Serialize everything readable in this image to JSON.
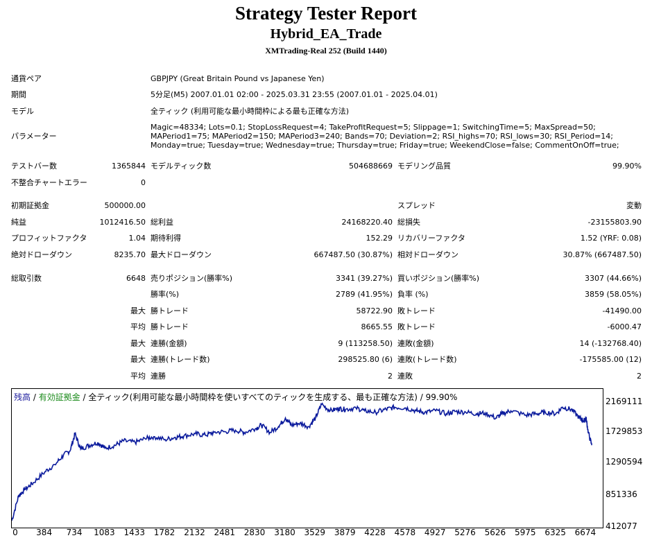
{
  "report": {
    "title": "Strategy Tester Report",
    "ea_name": "Hybrid_EA_Trade",
    "server": "XMTrading-Real 252 (Build 1440)"
  },
  "info": {
    "pair_label": "通貨ペア",
    "pair_value": "GBPJPY (Great Britain Pound vs Japanese Yen)",
    "period_label": "期間",
    "period_value": "5分足(M5) 2007.01.01 02:00 - 2025.03.31 23:55 (2007.01.01 - 2025.04.01)",
    "model_label": "モデル",
    "model_value": "全ティック (利用可能な最小時間枠による最も正確な方法)",
    "params_label": "パラメーター",
    "params_value": "Magic=48334; Lots=0.1; StopLossRequest=4; TakeProfitRequest=5; Slippage=1; SwitchingTime=5; MaxSpread=50; MAPeriod1=75; MAPeriod2=150; MAPeriod3=240; Bands=70; Deviation=2; RSI_highs=70; RSI_lows=30; RSI_Period=14; Monday=true; Tuesday=true; Wednesday=true; Thursday=true; Friday=true; WeekendClose=false; CommentOnOff=true;"
  },
  "stats": {
    "test_bars_label": "テストバー数",
    "test_bars": "1365844",
    "model_ticks_label": "モデルティック数",
    "model_ticks": "504688669",
    "model_quality_label": "モデリング品質",
    "model_quality": "99.90%",
    "mismatch_label": "不整合チャートエラー",
    "mismatch": "0",
    "initial_deposit_label": "初期証拠金",
    "initial_deposit": "500000.00",
    "spread_label": "スプレッド",
    "spread": "変動",
    "net_profit_label": "純益",
    "net_profit": "1012416.50",
    "gross_profit_label": "総利益",
    "gross_profit": "24168220.40",
    "gross_loss_label": "総損失",
    "gross_loss": "-23155803.90",
    "profit_factor_label": "プロフィットファクタ",
    "profit_factor": "1.04",
    "expected_payoff_label": "期待利得",
    "expected_payoff": "152.29",
    "recovery_factor_label": "リカバリーファクタ",
    "recovery_factor": "1.52 (YRF: 0.08)",
    "abs_dd_label": "絶対ドローダウン",
    "abs_dd": "8235.70",
    "max_dd_label": "最大ドローダウン",
    "max_dd": "667487.50 (30.87%)",
    "rel_dd_label": "相対ドローダウン",
    "rel_dd": "30.87% (667487.50)",
    "total_trades_label": "総取引数",
    "total_trades": "6648",
    "short_label": "売りポジション(勝率%)",
    "short": "3341 (39.27%)",
    "long_label": "買いポジション(勝率%)",
    "long": "3307 (44.66%)",
    "win_rate_label": "勝率(%)",
    "win_rate": "2789 (41.95%)",
    "loss_rate_label": "負率 (%)",
    "loss_rate": "3859 (58.05%)",
    "max_label": "最大",
    "avg_label": "平均",
    "largest_win_label": "勝トレード",
    "largest_win": "58722.90",
    "largest_loss_label": "敗トレード",
    "largest_loss": "-41490.00",
    "avg_win_label": "勝トレード",
    "avg_win": "8665.55",
    "avg_loss_label": "敗トレード",
    "avg_loss": "-6000.47",
    "max_consec_wins_amt_label": "連勝(金額)",
    "max_consec_wins_amt": "9 (113258.50)",
    "max_consec_losses_amt_label": "連敗(金額)",
    "max_consec_losses_amt": "14 (-132768.40)",
    "max_consec_wins_trades_label": "連勝(トレード数)",
    "max_consec_wins_trades": "298525.80 (6)",
    "max_consec_losses_trades_label": "連敗(トレード数)",
    "max_consec_losses_trades": "-175585.00 (12)",
    "avg_consec_wins_label": "連勝",
    "avg_consec_wins": "2",
    "avg_consec_losses_label": "連敗",
    "avg_consec_losses": "2"
  },
  "chart_data": {
    "type": "line",
    "legend": {
      "balance": "残高",
      "sep1": " / ",
      "equity": "有効証拠金",
      "rest": " / 全ティック(利用可能な最小時間枠を使いすべてのティックを生成する、最も正確な方法) / 99.90%"
    },
    "colors": {
      "line": "#0a1a9c",
      "balance_text": "#1a1a9c",
      "equity_text": "#1a8a1a"
    },
    "x_ticks": [
      "0",
      "384",
      "734",
      "1083",
      "1433",
      "1782",
      "2132",
      "2481",
      "2830",
      "3180",
      "3529",
      "3879",
      "4228",
      "4578",
      "4927",
      "5276",
      "5626",
      "5975",
      "6325",
      "6674"
    ],
    "y_ticks": [
      "2169111",
      "1729853",
      "1290594",
      "851336",
      "412077"
    ],
    "xlim": [
      0,
      6868
    ],
    "ylim": [
      412077,
      2169111
    ],
    "series": [
      {
        "x": [
          0,
          80,
          150,
          250,
          384,
          500,
          600,
          680,
          734,
          800,
          900,
          1000,
          1083,
          1200,
          1300,
          1433,
          1550,
          1650,
          1782,
          1900,
          2000,
          2132,
          2250,
          2350,
          2481,
          2600,
          2700,
          2830,
          2900,
          3000,
          3100,
          3180,
          3250,
          3350,
          3450,
          3529,
          3600,
          3700,
          3800,
          3879,
          4000,
          4100,
          4228,
          4350,
          4450,
          4578,
          4700,
          4800,
          4927,
          5050,
          5150,
          5276,
          5400,
          5500,
          5626,
          5700,
          5800,
          5975,
          6100,
          6200,
          6325,
          6400,
          6500,
          6600,
          6650,
          6674,
          6700,
          6740
        ],
        "y": [
          470000,
          820000,
          900000,
          1000000,
          1150000,
          1250000,
          1380000,
          1450000,
          1680000,
          1470000,
          1520000,
          1560000,
          1480000,
          1520000,
          1580000,
          1560000,
          1610000,
          1640000,
          1600000,
          1630000,
          1650000,
          1680000,
          1660000,
          1700000,
          1710000,
          1730000,
          1700000,
          1750000,
          1800000,
          1700000,
          1780000,
          1900000,
          1800000,
          1830000,
          1780000,
          1900000,
          2090000,
          2000000,
          2030000,
          2020000,
          2040000,
          2000000,
          1980000,
          2020000,
          2050000,
          2040000,
          2000000,
          1980000,
          2000000,
          1960000,
          1990000,
          1980000,
          1960000,
          1970000,
          1900000,
          1960000,
          2000000,
          1940000,
          1960000,
          1980000,
          1960000,
          2050000,
          2020000,
          1900000,
          1860000,
          1900000,
          1700000,
          1520000
        ]
      }
    ]
  }
}
